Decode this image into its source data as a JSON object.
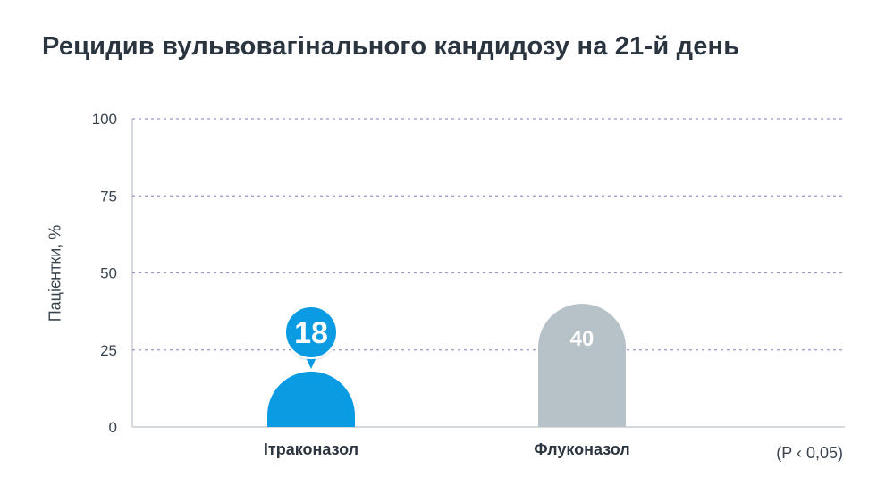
{
  "chart_data": {
    "type": "bar",
    "title": "Рецидив вульвовагінального кандидозу на 21-й день",
    "ylabel": "Пацієнтки, %",
    "xlabel": "",
    "categories": [
      "Ітраконазол",
      "Флуконазол"
    ],
    "values": [
      18,
      40
    ],
    "value_labels": [
      "18",
      "40"
    ],
    "ylim": [
      0,
      100
    ],
    "yticks": [
      0,
      25,
      50,
      75,
      100
    ],
    "grid": true,
    "bar_colors": [
      "#0a9be3",
      "#b7c1c8"
    ],
    "annotation": "(P ‹ 0,05)"
  },
  "colors": {
    "grid": "#9b93c9",
    "axis": "#c9ced3",
    "text": "#2b3540",
    "highlight": "#0a9be3"
  }
}
